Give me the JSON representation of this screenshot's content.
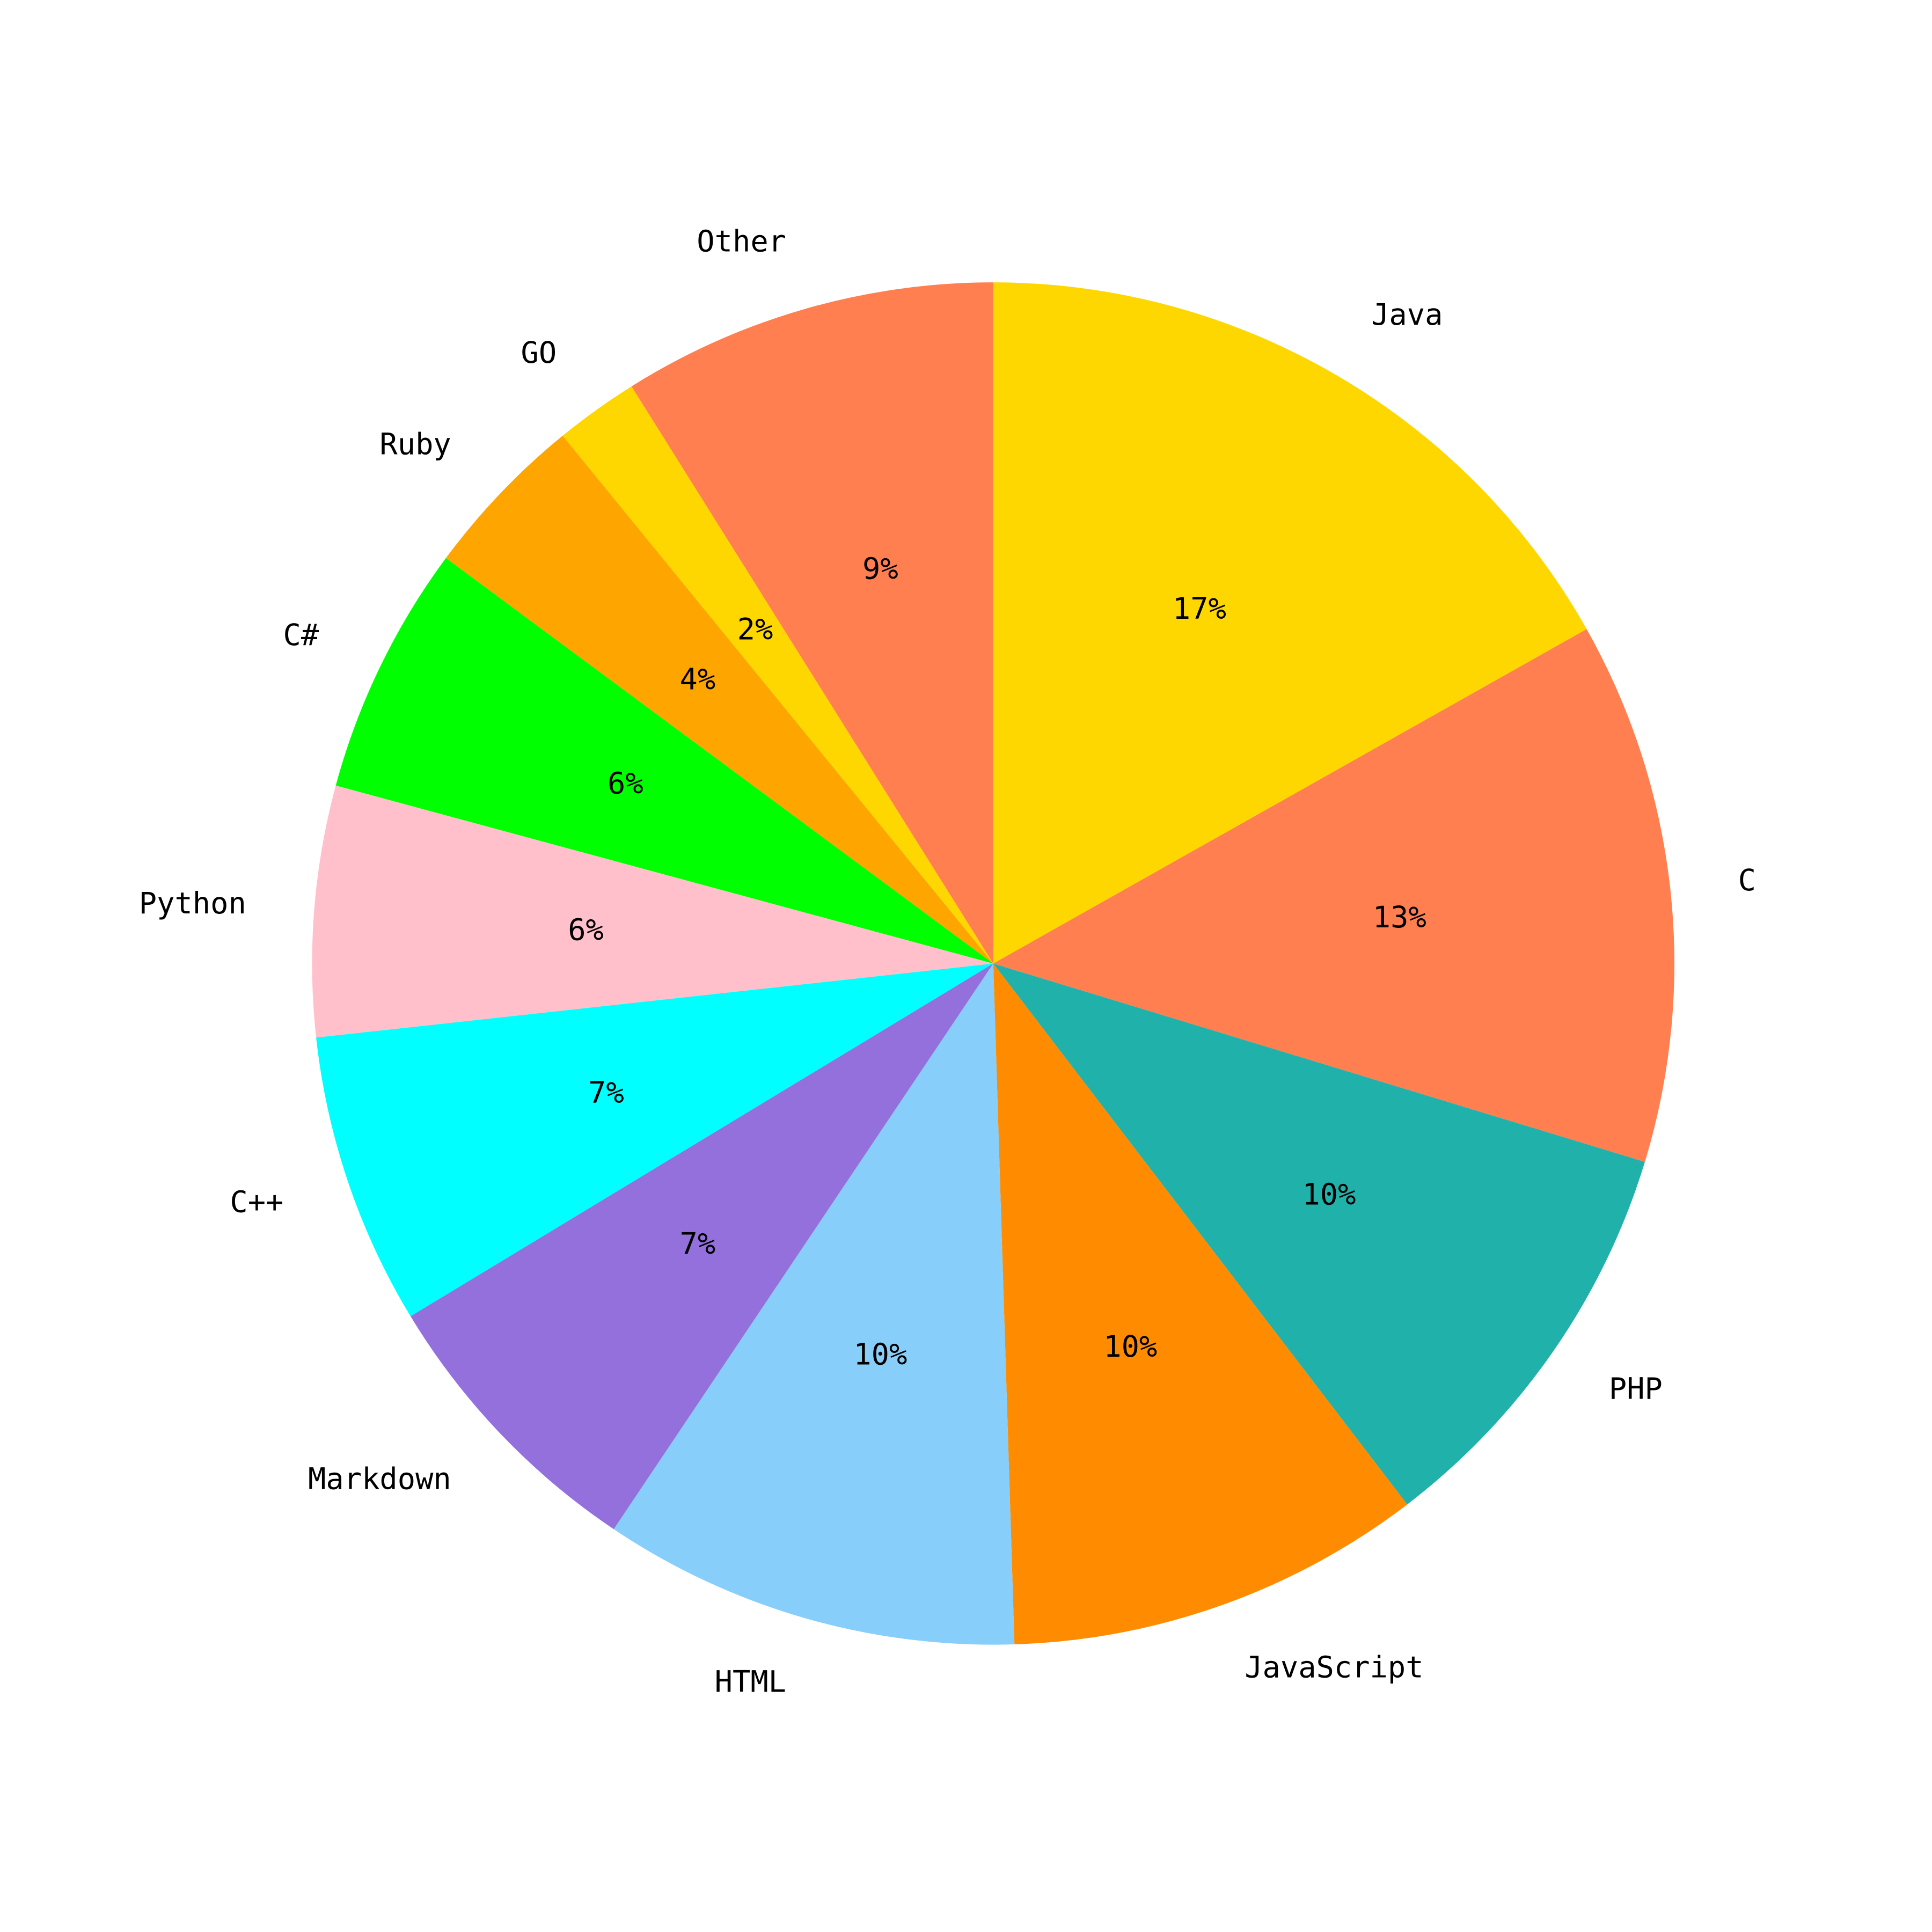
{
  "chart_data": {
    "type": "pie",
    "categories": [
      "Java",
      "C",
      "PHP",
      "JavaScript",
      "HTML",
      "Markdown",
      "C++",
      "Python",
      "C#",
      "Ruby",
      "GO",
      "Other"
    ],
    "values": [
      17,
      13,
      10,
      10,
      10,
      7,
      7,
      6,
      6,
      4,
      2,
      9
    ],
    "value_labels": [
      "17%",
      "13%",
      "10%",
      "10%",
      "10%",
      "7%",
      "7%",
      "6%",
      "6%",
      "4%",
      "2%",
      "9%"
    ],
    "colors": [
      "#FFD700",
      "#FF7F50",
      "#20B2AA",
      "#FF8C00",
      "#87CEFA",
      "#9370DB",
      "#00FFFF",
      "#FFC0CB",
      "#00FF00",
      "#FFA500",
      "#FFD700",
      "#FF7F50"
    ]
  }
}
